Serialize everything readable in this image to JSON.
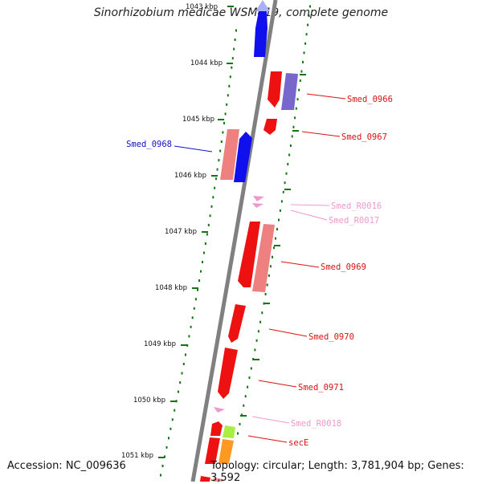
{
  "title": "Sinorhizobium medicae WSM419, complete genome",
  "accession_text": "Accession: NC_009636",
  "stats_text": "Topology: circular; Length: 3,781,904 bp; Genes: 3,592",
  "ticks": [
    "1043 kbp",
    "1044 kbp",
    "1045 kbp",
    "1046 kbp",
    "1047 kbp",
    "1048 kbp",
    "1049 kbp",
    "1050 kbp",
    "1051 kbp"
  ],
  "colors": {
    "cds": "#ee0000",
    "cds_pale": "#ee8888",
    "cds_minus": "#1111ee",
    "cds_purple": "#7766cc",
    "rna": "#ee99cc",
    "lime": "#aaee44",
    "orange": "#ff9922",
    "backbone": "#808080",
    "tick": "#117711"
  },
  "genes": [
    {
      "name": "Smed_0966",
      "color": "#dd1111"
    },
    {
      "name": "Smed_0967",
      "color": "#dd1111"
    },
    {
      "name": "Smed_0968",
      "color": "#1111cc"
    },
    {
      "name": "Smed_R0016",
      "color": "#ee99cc"
    },
    {
      "name": "Smed_R0017",
      "color": "#ee99cc"
    },
    {
      "name": "Smed_0969",
      "color": "#dd1111"
    },
    {
      "name": "Smed_0970",
      "color": "#dd1111"
    },
    {
      "name": "Smed_0971",
      "color": "#dd1111"
    },
    {
      "name": "Smed_R0018",
      "color": "#ee99cc"
    },
    {
      "name": "secE",
      "color": "#dd1111"
    }
  ]
}
